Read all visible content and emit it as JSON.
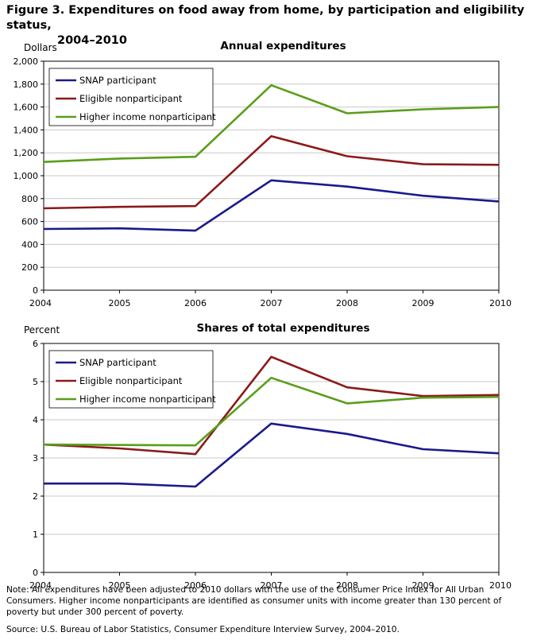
{
  "figure": {
    "title_line1": "Figure 3. Expenditures on food away from home, by participation and eligibility status,",
    "title_line2": "2004–2010",
    "note": "Note:  All expenditures have been adjusted to 2010 dollars with the use of the Consumer Price Index for All Urban Consumers. Higher income nonparticipants  are identified as consumer units with income greater than 130 percent of poverty but under 300 percent of poverty.",
    "source": "Source:  U.S. Bureau of Labor Statistics, Consumer Expenditure Interview Survey, 2004–2010."
  },
  "colors": {
    "snap": "#1a1a8c",
    "eligible": "#8b1a1a",
    "higher": "#5a9e1a",
    "grid": "#c8c8c8",
    "axis": "#000000"
  },
  "chart_data": [
    {
      "type": "line",
      "title": "Annual expenditures",
      "ylabel": "Dollars",
      "xlabel": "",
      "x": [
        "2004",
        "2005",
        "2006",
        "2007",
        "2008",
        "2009",
        "2010"
      ],
      "ylim": [
        0,
        2000
      ],
      "yticks": [
        0,
        200,
        400,
        600,
        800,
        1000,
        1200,
        1400,
        1600,
        1800,
        2000
      ],
      "ytick_labels": [
        "0",
        "200",
        "400",
        "600",
        "800",
        "1,000",
        "1,200",
        "1,400",
        "1,600",
        "1,800",
        "2,000"
      ],
      "grid": true,
      "legend": "top-left",
      "series": [
        {
          "name": "SNAP participant",
          "color_key": "snap",
          "values": [
            535,
            540,
            520,
            960,
            905,
            825,
            775
          ]
        },
        {
          "name": "Eligible nonparticipant",
          "color_key": "eligible",
          "values": [
            715,
            728,
            735,
            1345,
            1170,
            1100,
            1095
          ]
        },
        {
          "name": "Higher income nonparticipant",
          "color_key": "higher",
          "values": [
            1120,
            1150,
            1165,
            1790,
            1545,
            1580,
            1600
          ]
        }
      ]
    },
    {
      "type": "line",
      "title": "Shares of total expenditures",
      "ylabel": "Percent",
      "xlabel": "",
      "x": [
        "2004",
        "2005",
        "2006",
        "2007",
        "2008",
        "2009",
        "2010"
      ],
      "ylim": [
        0,
        6
      ],
      "yticks": [
        0,
        1,
        2,
        3,
        4,
        5,
        6
      ],
      "ytick_labels": [
        "0",
        "1",
        "2",
        "3",
        "4",
        "5",
        "6"
      ],
      "grid": true,
      "legend": "top-left",
      "series": [
        {
          "name": "SNAP participant",
          "color_key": "snap",
          "values": [
            2.33,
            2.33,
            2.25,
            3.9,
            3.63,
            3.23,
            3.12
          ]
        },
        {
          "name": "Eligible nonparticipant",
          "color_key": "eligible",
          "values": [
            3.35,
            3.25,
            3.1,
            5.65,
            4.85,
            4.62,
            4.65
          ]
        },
        {
          "name": "Higher income nonparticipant",
          "color_key": "higher",
          "values": [
            3.35,
            3.34,
            3.33,
            5.1,
            4.43,
            4.58,
            4.6
          ]
        }
      ]
    }
  ]
}
